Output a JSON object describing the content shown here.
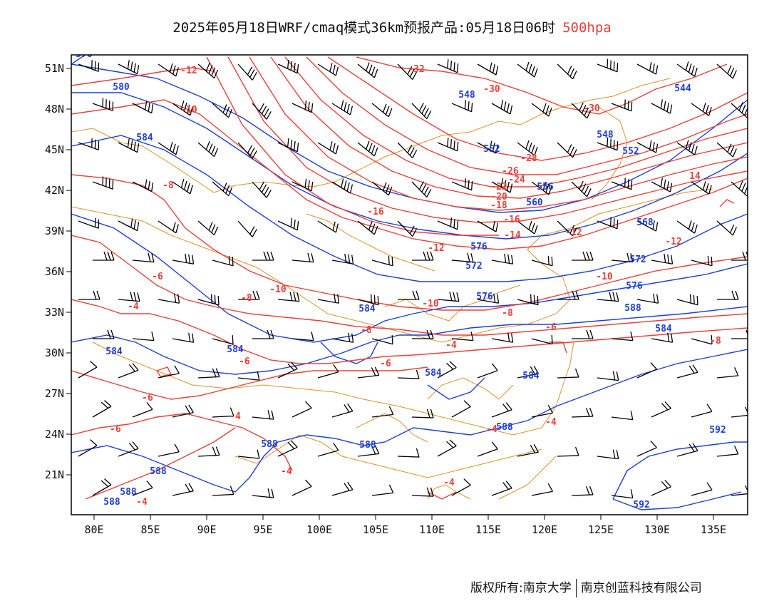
{
  "title": {
    "main": "2025年05月18日WRF/cmaq模式36km预报产品:05月18日06时",
    "level": "500hpa",
    "level_color": "#e8413a"
  },
  "map": {
    "lon_ticks": [
      "80E",
      "85E",
      "90E",
      "95E",
      "100E",
      "105E",
      "110E",
      "115E",
      "120E",
      "125E",
      "130E",
      "135E"
    ],
    "lat_ticks": [
      "51N",
      "48N",
      "45N",
      "42N",
      "39N",
      "36N",
      "33N",
      "30N",
      "27N",
      "24N",
      "21N"
    ],
    "height_color": "#1f3fd6",
    "temp_color": "#e8413a",
    "border_color": "#e0902a",
    "height_labels": [
      "576",
      "580",
      "584",
      "548",
      "552",
      "544",
      "556",
      "560",
      "568",
      "572",
      "576",
      "580",
      "584",
      "584",
      "584",
      "584",
      "584",
      "588",
      "588",
      "588",
      "588",
      "588",
      "588",
      "588",
      "592",
      "592"
    ],
    "temp_labels": [
      "-12",
      "-10",
      "-8",
      "-6",
      "-4",
      "-6",
      "-6",
      "-4",
      "-32",
      "-30",
      "-30",
      "-28",
      "-26",
      "-24",
      "-22",
      "-20",
      "-18",
      "-16",
      "-16",
      "-14",
      "-14",
      "-12",
      "-12",
      "-12",
      "-10",
      "-10",
      "-10",
      "-8",
      "-8",
      "-8",
      "-6",
      "-6",
      "-4",
      "-4",
      "-4",
      "-4",
      "-4",
      "-4",
      "-4",
      "-8",
      "-4"
    ]
  },
  "footer": {
    "left": "版权所有:南京大学",
    "right": "南京创蓝科技有限公司"
  }
}
